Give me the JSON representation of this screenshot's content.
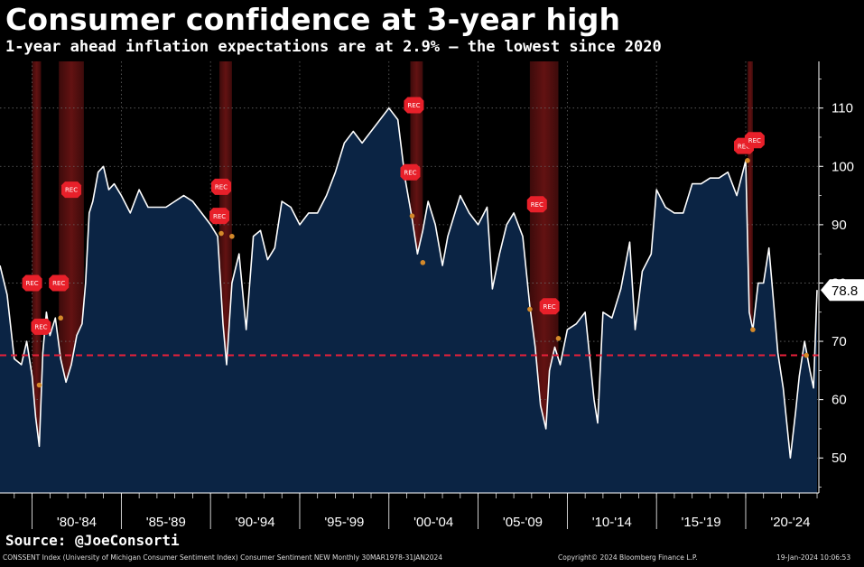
{
  "title": "Consumer confidence at 3-year high",
  "subtitle": "1-year ahead inflation expectations are at 2.9% — the lowest since 2020",
  "source": "Source: @JoeConsorti",
  "footer": {
    "left": "CONSSENT Index (University of Michigan Consumer Sentiment Index) Consumer Sentiment NEW  Monthly 30MAR1978-31JAN2024",
    "center": "Copyright© 2024 Bloomberg Finance L.P.",
    "right": "19-Jan-2024 10:06:53"
  },
  "colors": {
    "background": "#000000",
    "area_fill": "#0b2444",
    "line": "#ffffff",
    "reference_line": "#e8203a",
    "recession_band": "#6e1414",
    "rec_marker": "#e8202a",
    "dot": "#d4892a"
  },
  "chart_data": {
    "type": "area",
    "title": "Consumer confidence at 3-year high",
    "subtitle": "1-year ahead inflation expectations are at 2.9% — the lowest since 2020",
    "xlim": [
      1978.2,
      2024.1
    ],
    "ylim": [
      44,
      118
    ],
    "y_ticks": [
      50,
      60,
      70,
      80,
      90,
      100,
      110
    ],
    "x_tick_labels": [
      {
        "label": "'80-'84",
        "start": 1980,
        "end": 1984
      },
      {
        "label": "'85-'89",
        "start": 1985,
        "end": 1989
      },
      {
        "label": "'90-'94",
        "start": 1990,
        "end": 1994
      },
      {
        "label": "'95-'99",
        "start": 1995,
        "end": 1999
      },
      {
        "label": "'00-'04",
        "start": 2000,
        "end": 2004
      },
      {
        "label": "'05-'09",
        "start": 2005,
        "end": 2009
      },
      {
        "label": "'10-'14",
        "start": 2010,
        "end": 2014
      },
      {
        "label": "'15-'19",
        "start": 2015,
        "end": 2019
      },
      {
        "label": "'20-'24",
        "start": 2020,
        "end": 2024
      }
    ],
    "grid": true,
    "last_value_label": "78.8",
    "reference_line": {
      "y": 67.6,
      "style": "dashed"
    },
    "recessions": [
      {
        "start": 1980.0,
        "end": 1980.5
      },
      {
        "start": 1981.5,
        "end": 1982.9
      },
      {
        "start": 1990.5,
        "end": 1991.2
      },
      {
        "start": 2001.2,
        "end": 2001.9
      },
      {
        "start": 2007.9,
        "end": 2009.5
      },
      {
        "start": 2020.1,
        "end": 2020.4
      }
    ],
    "rec_markers": [
      {
        "label": "REC",
        "x": 1980.0,
        "y": 80
      },
      {
        "label": "REC",
        "x": 1980.5,
        "y": 72.5
      },
      {
        "label": "REC",
        "x": 1981.5,
        "y": 80
      },
      {
        "label": "REC",
        "x": 1982.2,
        "y": 96
      },
      {
        "label": "REC",
        "x": 1990.6,
        "y": 96.5
      },
      {
        "label": "REC",
        "x": 1990.5,
        "y": 91.5
      },
      {
        "label": "REC",
        "x": 2001.4,
        "y": 110.5
      },
      {
        "label": "REC",
        "x": 2001.2,
        "y": 99
      },
      {
        "label": "REC",
        "x": 2008.3,
        "y": 93.5
      },
      {
        "label": "REC",
        "x": 2009.0,
        "y": 76
      },
      {
        "label": "REC",
        "x": 2019.9,
        "y": 103.5
      },
      {
        "label": "REC",
        "x": 2020.5,
        "y": 104.5
      }
    ],
    "dots": [
      {
        "x": 1980.4,
        "y": 62.5
      },
      {
        "x": 1981.6,
        "y": 74
      },
      {
        "x": 1990.6,
        "y": 88.5
      },
      {
        "x": 1991.2,
        "y": 88
      },
      {
        "x": 2001.3,
        "y": 91.5
      },
      {
        "x": 2001.9,
        "y": 83.5
      },
      {
        "x": 2007.9,
        "y": 75.5
      },
      {
        "x": 2009.5,
        "y": 70.5
      },
      {
        "x": 2020.1,
        "y": 101
      },
      {
        "x": 2020.4,
        "y": 72
      },
      {
        "x": 2023.4,
        "y": 67.6
      }
    ],
    "series": [
      {
        "values_x": [
          1978.2,
          1978.6,
          1979.0,
          1979.4,
          1979.7,
          1980.0,
          1980.2,
          1980.4,
          1980.6,
          1980.8,
          1981.0,
          1981.3,
          1981.6,
          1981.9,
          1982.2,
          1982.5,
          1982.8,
          1983.0,
          1983.2,
          1983.4,
          1983.7,
          1984.0,
          1984.3,
          1984.6,
          1985.0,
          1985.5,
          1986.0,
          1986.5,
          1987.0,
          1987.5,
          1988.0,
          1988.5,
          1989.0,
          1989.5,
          1990.0,
          1990.4,
          1990.7,
          1990.9,
          1991.2,
          1991.6,
          1992.0,
          1992.4,
          1992.8,
          1993.2,
          1993.6,
          1994.0,
          1994.5,
          1995.0,
          1995.5,
          1996.0,
          1996.5,
          1997.0,
          1997.5,
          1998.0,
          1998.5,
          1999.0,
          1999.5,
          2000.0,
          2000.5,
          2000.9,
          2001.3,
          2001.6,
          2001.9,
          2002.2,
          2002.6,
          2003.0,
          2003.3,
          2003.7,
          2004.0,
          2004.5,
          2005.0,
          2005.5,
          2005.8,
          2006.2,
          2006.6,
          2007.0,
          2007.5,
          2007.9,
          2008.2,
          2008.5,
          2008.8,
          2009.0,
          2009.3,
          2009.6,
          2010.0,
          2010.5,
          2011.0,
          2011.5,
          2011.7,
          2012.0,
          2012.5,
          2013.0,
          2013.5,
          2013.8,
          2014.2,
          2014.7,
          2015.0,
          2015.5,
          2016.0,
          2016.5,
          2017.0,
          2017.5,
          2018.0,
          2018.5,
          2019.0,
          2019.5,
          2020.0,
          2020.2,
          2020.4,
          2020.7,
          2021.0,
          2021.3,
          2021.5,
          2021.8,
          2022.1,
          2022.5,
          2022.8,
          2023.0,
          2023.3,
          2023.6,
          2023.8,
          2024.0
        ],
        "values_y": [
          83,
          78,
          67,
          66,
          70,
          64,
          57,
          52,
          68,
          75,
          71,
          74,
          67,
          63,
          66,
          71,
          73,
          80,
          92,
          94,
          99,
          100,
          96,
          97,
          95,
          92,
          96,
          93,
          93,
          93,
          94,
          95,
          94,
          92,
          90,
          88,
          73,
          66,
          80,
          85,
          72,
          88,
          89,
          84,
          86,
          94,
          93,
          90,
          92,
          92,
          95,
          99,
          104,
          106,
          104,
          106,
          108,
          110,
          108,
          98,
          91,
          85,
          89,
          94,
          90,
          83,
          88,
          92,
          95,
          92,
          90,
          93,
          79,
          85,
          90,
          92,
          88,
          76,
          69,
          59,
          55,
          65,
          69,
          66,
          72,
          73,
          75,
          60,
          56,
          75,
          74,
          79,
          87,
          72,
          82,
          85,
          96,
          93,
          92,
          92,
          97,
          97,
          98,
          98,
          99,
          95,
          101,
          75,
          72,
          80,
          80,
          86,
          79,
          68,
          62,
          50,
          58,
          64,
          70,
          65,
          62,
          78.8
        ]
      }
    ]
  }
}
